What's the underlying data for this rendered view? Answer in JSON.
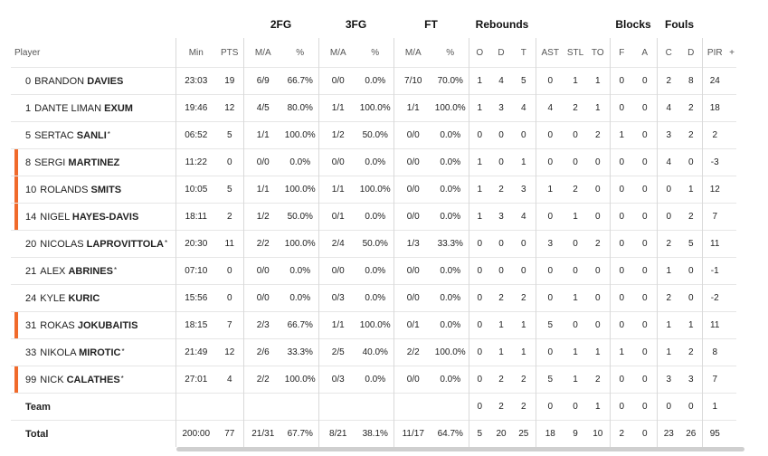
{
  "headers": {
    "groups": {
      "fg2": "2FG",
      "fg3": "3FG",
      "ft": "FT",
      "rebounds": "Rebounds",
      "blocks": "Blocks",
      "fouls": "Fouls"
    },
    "cols": {
      "player": "Player",
      "min": "Min",
      "pts": "PTS",
      "fg2_ma": "M/A",
      "fg2_pct": "%",
      "fg3_ma": "M/A",
      "fg3_pct": "%",
      "ft_ma": "M/A",
      "ft_pct": "%",
      "o": "O",
      "d": "D",
      "t": "T",
      "ast": "AST",
      "stl": "STL",
      "to": "TO",
      "bf": "F",
      "ba": "A",
      "fc": "C",
      "fd": "D",
      "pir": "PIR",
      "plus": "+"
    }
  },
  "players": [
    {
      "num": "0",
      "first": "BRANDON",
      "last": "DAVIES",
      "star": "",
      "bar": false,
      "min": "23:03",
      "pts": "19",
      "fg2": "6/9",
      "fg2p": "66.7%",
      "fg3": "0/0",
      "fg3p": "0.0%",
      "ft": "7/10",
      "ftp": "70.0%",
      "o": "1",
      "d": "4",
      "t": "5",
      "ast": "0",
      "stl": "1",
      "to": "1",
      "bf": "0",
      "ba": "0",
      "fc": "2",
      "fd": "8",
      "pir": "24"
    },
    {
      "num": "1",
      "first": "DANTE LIMAN",
      "last": "EXUM",
      "star": "",
      "bar": false,
      "min": "19:46",
      "pts": "12",
      "fg2": "4/5",
      "fg2p": "80.0%",
      "fg3": "1/1",
      "fg3p": "100.0%",
      "ft": "1/1",
      "ftp": "100.0%",
      "o": "1",
      "d": "3",
      "t": "4",
      "ast": "4",
      "stl": "2",
      "to": "1",
      "bf": "0",
      "ba": "0",
      "fc": "4",
      "fd": "2",
      "pir": "18"
    },
    {
      "num": "5",
      "first": "SERTAC",
      "last": "SANLI",
      "star": "*",
      "bar": false,
      "min": "06:52",
      "pts": "5",
      "fg2": "1/1",
      "fg2p": "100.0%",
      "fg3": "1/2",
      "fg3p": "50.0%",
      "ft": "0/0",
      "ftp": "0.0%",
      "o": "0",
      "d": "0",
      "t": "0",
      "ast": "0",
      "stl": "0",
      "to": "2",
      "bf": "1",
      "ba": "0",
      "fc": "3",
      "fd": "2",
      "pir": "2"
    },
    {
      "num": "8",
      "first": "SERGI",
      "last": "MARTINEZ",
      "star": "",
      "bar": true,
      "min": "11:22",
      "pts": "0",
      "fg2": "0/0",
      "fg2p": "0.0%",
      "fg3": "0/0",
      "fg3p": "0.0%",
      "ft": "0/0",
      "ftp": "0.0%",
      "o": "1",
      "d": "0",
      "t": "1",
      "ast": "0",
      "stl": "0",
      "to": "0",
      "bf": "0",
      "ba": "0",
      "fc": "4",
      "fd": "0",
      "pir": "-3"
    },
    {
      "num": "10",
      "first": "ROLANDS",
      "last": "SMITS",
      "star": "",
      "bar": true,
      "min": "10:05",
      "pts": "5",
      "fg2": "1/1",
      "fg2p": "100.0%",
      "fg3": "1/1",
      "fg3p": "100.0%",
      "ft": "0/0",
      "ftp": "0.0%",
      "o": "1",
      "d": "2",
      "t": "3",
      "ast": "1",
      "stl": "2",
      "to": "0",
      "bf": "0",
      "ba": "0",
      "fc": "0",
      "fd": "1",
      "pir": "12"
    },
    {
      "num": "14",
      "first": "NIGEL",
      "last": "HAYES-DAVIS",
      "star": "",
      "bar": true,
      "min": "18:11",
      "pts": "2",
      "fg2": "1/2",
      "fg2p": "50.0%",
      "fg3": "0/1",
      "fg3p": "0.0%",
      "ft": "0/0",
      "ftp": "0.0%",
      "o": "1",
      "d": "3",
      "t": "4",
      "ast": "0",
      "stl": "1",
      "to": "0",
      "bf": "0",
      "ba": "0",
      "fc": "0",
      "fd": "2",
      "pir": "7"
    },
    {
      "num": "20",
      "first": "NICOLAS",
      "last": "LAPROVITTOLA",
      "star": "*",
      "bar": false,
      "min": "20:30",
      "pts": "11",
      "fg2": "2/2",
      "fg2p": "100.0%",
      "fg3": "2/4",
      "fg3p": "50.0%",
      "ft": "1/3",
      "ftp": "33.3%",
      "o": "0",
      "d": "0",
      "t": "0",
      "ast": "3",
      "stl": "0",
      "to": "2",
      "bf": "0",
      "ba": "0",
      "fc": "2",
      "fd": "5",
      "pir": "11"
    },
    {
      "num": "21",
      "first": "ALEX",
      "last": "ABRINES",
      "star": "*",
      "bar": false,
      "min": "07:10",
      "pts": "0",
      "fg2": "0/0",
      "fg2p": "0.0%",
      "fg3": "0/0",
      "fg3p": "0.0%",
      "ft": "0/0",
      "ftp": "0.0%",
      "o": "0",
      "d": "0",
      "t": "0",
      "ast": "0",
      "stl": "0",
      "to": "0",
      "bf": "0",
      "ba": "0",
      "fc": "1",
      "fd": "0",
      "pir": "-1"
    },
    {
      "num": "24",
      "first": "KYLE",
      "last": "KURIC",
      "star": "",
      "bar": false,
      "min": "15:56",
      "pts": "0",
      "fg2": "0/0",
      "fg2p": "0.0%",
      "fg3": "0/3",
      "fg3p": "0.0%",
      "ft": "0/0",
      "ftp": "0.0%",
      "o": "0",
      "d": "2",
      "t": "2",
      "ast": "0",
      "stl": "1",
      "to": "0",
      "bf": "0",
      "ba": "0",
      "fc": "2",
      "fd": "0",
      "pir": "-2"
    },
    {
      "num": "31",
      "first": "ROKAS",
      "last": "JOKUBAITIS",
      "star": "",
      "bar": true,
      "min": "18:15",
      "pts": "7",
      "fg2": "2/3",
      "fg2p": "66.7%",
      "fg3": "1/1",
      "fg3p": "100.0%",
      "ft": "0/1",
      "ftp": "0.0%",
      "o": "0",
      "d": "1",
      "t": "1",
      "ast": "5",
      "stl": "0",
      "to": "0",
      "bf": "0",
      "ba": "0",
      "fc": "1",
      "fd": "1",
      "pir": "11"
    },
    {
      "num": "33",
      "first": "NIKOLA",
      "last": "MIROTIC",
      "star": "*",
      "bar": false,
      "min": "21:49",
      "pts": "12",
      "fg2": "2/6",
      "fg2p": "33.3%",
      "fg3": "2/5",
      "fg3p": "40.0%",
      "ft": "2/2",
      "ftp": "100.0%",
      "o": "0",
      "d": "1",
      "t": "1",
      "ast": "0",
      "stl": "1",
      "to": "1",
      "bf": "1",
      "ba": "0",
      "fc": "1",
      "fd": "2",
      "pir": "8"
    },
    {
      "num": "99",
      "first": "NICK",
      "last": "CALATHES",
      "star": "*",
      "bar": true,
      "min": "27:01",
      "pts": "4",
      "fg2": "2/2",
      "fg2p": "100.0%",
      "fg3": "0/3",
      "fg3p": "0.0%",
      "ft": "0/0",
      "ftp": "0.0%",
      "o": "0",
      "d": "2",
      "t": "2",
      "ast": "5",
      "stl": "1",
      "to": "2",
      "bf": "0",
      "ba": "0",
      "fc": "3",
      "fd": "3",
      "pir": "7"
    }
  ],
  "team": {
    "label": "Team",
    "o": "0",
    "d": "2",
    "t": "2",
    "ast": "0",
    "stl": "0",
    "to": "1",
    "bf": "0",
    "ba": "0",
    "fc": "0",
    "fd": "0",
    "pir": "1"
  },
  "total": {
    "label": "Total",
    "min": "200:00",
    "pts": "77",
    "fg2": "21/31",
    "fg2p": "67.7%",
    "fg3": "8/21",
    "fg3p": "38.1%",
    "ft": "11/17",
    "ftp": "64.7%",
    "o": "5",
    "d": "20",
    "t": "25",
    "ast": "18",
    "stl": "9",
    "to": "10",
    "bf": "2",
    "ba": "0",
    "fc": "23",
    "fd": "26",
    "pir": "95"
  },
  "colors": {
    "starter_bar": "#f06a2b"
  }
}
